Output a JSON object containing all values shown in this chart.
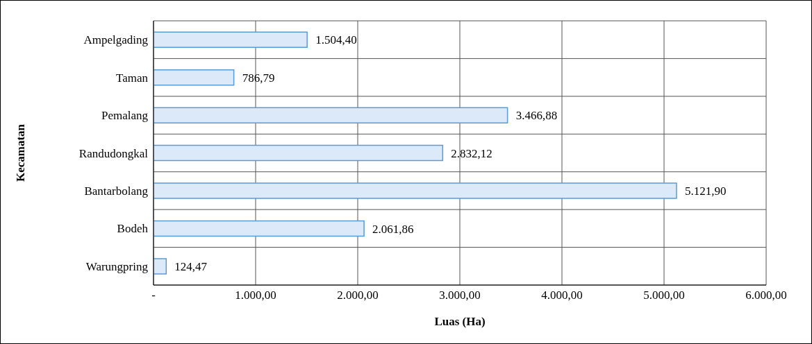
{
  "chart_data": {
    "type": "bar",
    "orientation": "horizontal",
    "xlabel": "Luas (Ha)",
    "ylabel": "Kecamatan",
    "categories": [
      "Ampelgading",
      "Taman",
      "Pemalang",
      "Randudongkal",
      "Bantarbolang",
      "Bodeh",
      "Warungpring"
    ],
    "values": [
      1504.4,
      786.79,
      3466.88,
      2832.12,
      5121.9,
      2061.86,
      124.47
    ],
    "value_labels": [
      "1.504,40",
      "786,79",
      "3.466,88",
      "2.832,12",
      "5.121,90",
      "2.061,86",
      "124,47"
    ],
    "color": "#dce9f8",
    "xlim": [
      0,
      6000
    ],
    "xticks": [
      {
        "value": 0,
        "label": "-"
      },
      {
        "value": 1000,
        "label": "1.000,00"
      },
      {
        "value": 2000,
        "label": "2.000,00"
      },
      {
        "value": 3000,
        "label": "3.000,00"
      },
      {
        "value": 4000,
        "label": "4.000,00"
      },
      {
        "value": 5000,
        "label": "5.000,00"
      },
      {
        "value": 6000,
        "label": "6.000,00"
      }
    ],
    "grid": true
  }
}
